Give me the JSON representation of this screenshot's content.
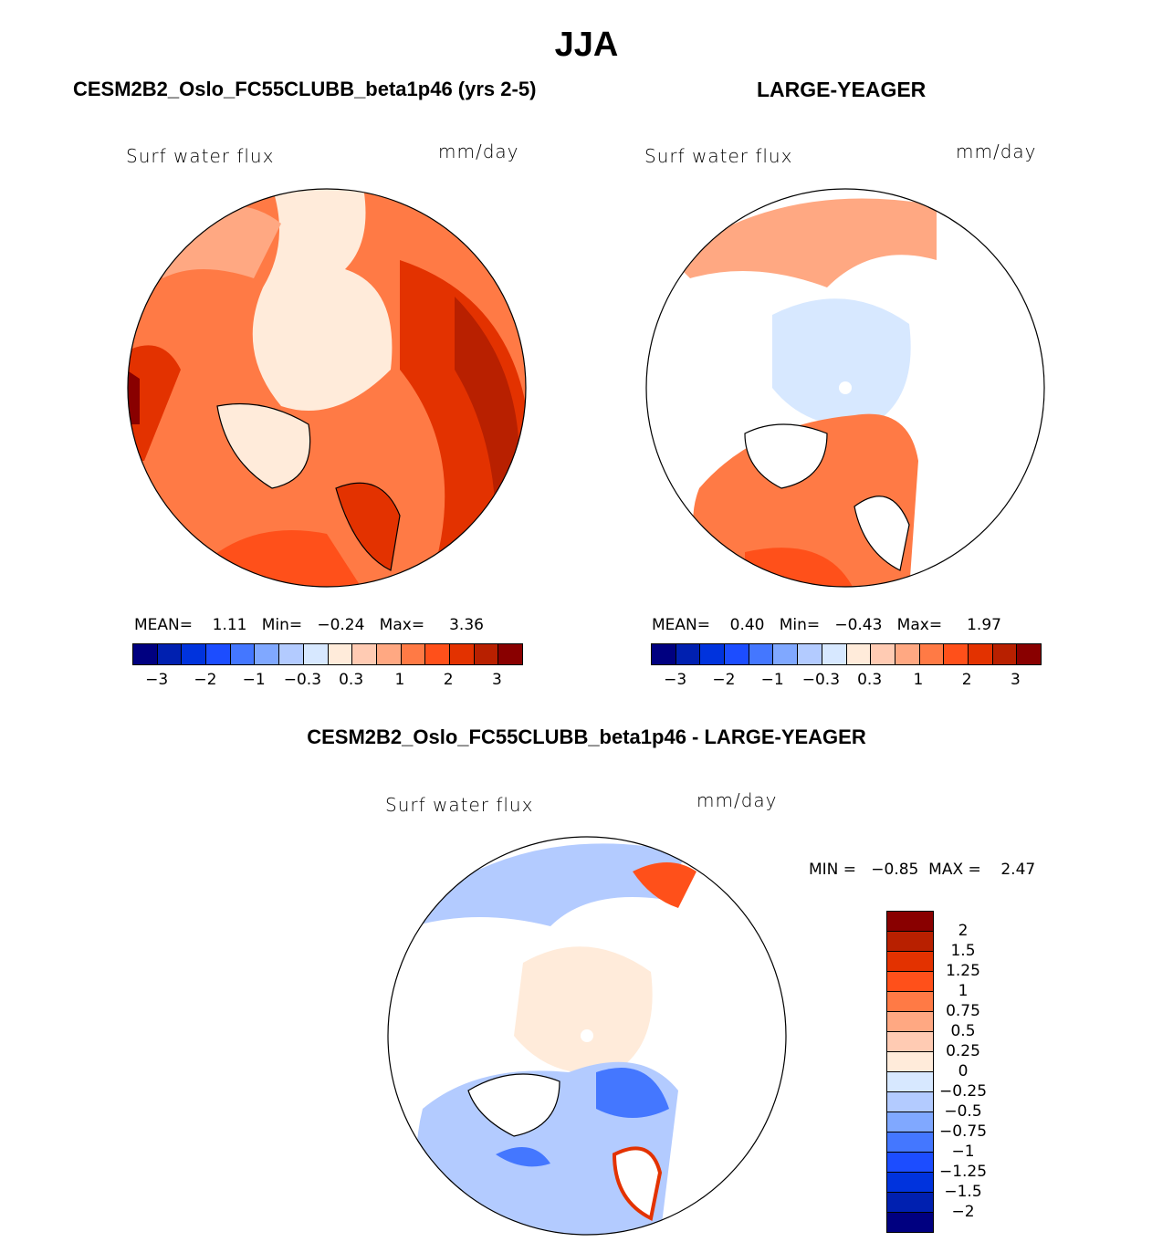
{
  "title": "JJA",
  "panels": [
    {
      "title": "CESM2B2_Oslo_FC55CLUBB_beta1p46 (yrs 2-5)",
      "variable": "Surf  water  flux",
      "units": "mm/day",
      "stats": {
        "mean_label": "MEAN=",
        "mean": "1.11",
        "min_label": "Min=",
        "min": "−0.24",
        "max_label": "Max=",
        "max": "3.36"
      }
    },
    {
      "title": "LARGE-YEAGER",
      "variable": "Surf  water  flux",
      "units": "mm/day",
      "stats": {
        "mean_label": "MEAN=",
        "mean": "0.40",
        "min_label": "Min=",
        "min": "−0.43",
        "max_label": "Max=",
        "max": "1.97"
      }
    },
    {
      "title": "CESM2B2_Oslo_FC55CLUBB_beta1p46 - LARGE-YEAGER",
      "variable": "Surf  water  flux",
      "units": "mm/day",
      "stats": {
        "text": "MIN =   −0.85  MAX =    2.47"
      }
    }
  ],
  "colorbar": {
    "colors": [
      "#000080",
      "#0020b0",
      "#0033dd",
      "#1c4dff",
      "#4477ff",
      "#80a8ff",
      "#b3cbff",
      "#d7e8ff",
      "#ffebda",
      "#ffcbb3",
      "#ffa882",
      "#ff7a45",
      "#ff501a",
      "#e33200",
      "#b82000",
      "#890000"
    ],
    "labels": [
      "−3",
      "−2",
      "−1",
      "−0.3",
      "0.3",
      "1",
      "2",
      "3"
    ]
  },
  "diff_colorbar": {
    "labels": [
      "2",
      "1.5",
      "1.25",
      "1",
      "0.75",
      "0.5",
      "0.25",
      "0",
      "−0.25",
      "−0.5",
      "−0.75",
      "−1",
      "−1.25",
      "−1.5",
      "−2"
    ]
  }
}
